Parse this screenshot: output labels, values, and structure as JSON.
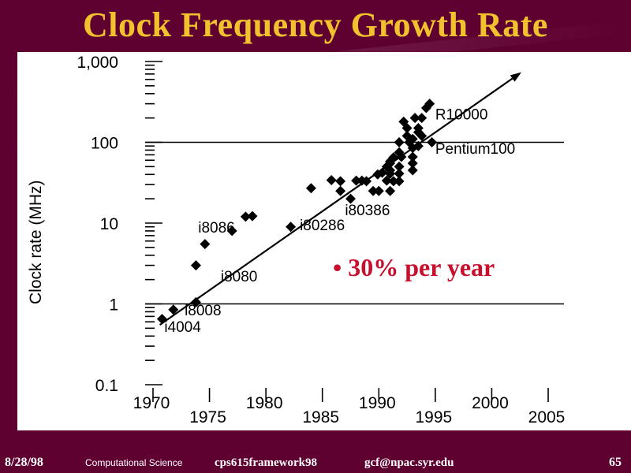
{
  "slide": {
    "title": "Clock Frequency Growth Rate",
    "bullet": "• 30% per year"
  },
  "footer": {
    "date": "8/28/98",
    "course": "Computational Science",
    "code": "cps615framework98",
    "email": "gcf@npac.syr.edu",
    "page": "65"
  },
  "colors": {
    "background": "#5e0030",
    "title": "#f2c12e",
    "bullet": "#c8102e"
  },
  "chart_data": {
    "type": "scatter",
    "ylabel": "Clock rate (MHz)",
    "yscale": "log",
    "ylim": [
      0.1,
      1000
    ],
    "xlim": [
      1970,
      2005
    ],
    "y_ticks": [
      {
        "value": 0.1,
        "label": "0.1"
      },
      {
        "value": 1,
        "label": "1"
      },
      {
        "value": 10,
        "label": "10"
      },
      {
        "value": 100,
        "label": "100"
      },
      {
        "value": 1000,
        "label": "1,000"
      }
    ],
    "x_ticks": [
      {
        "value": 1970,
        "label": "1970",
        "row": "upper"
      },
      {
        "value": 1975,
        "label": "1975",
        "row": "lower"
      },
      {
        "value": 1980,
        "label": "1980",
        "row": "upper"
      },
      {
        "value": 1985,
        "label": "1985",
        "row": "lower"
      },
      {
        "value": 1990,
        "label": "1990",
        "row": "upper"
      },
      {
        "value": 1995,
        "label": "1995",
        "row": "lower"
      },
      {
        "value": 2000,
        "label": "2000",
        "row": "upper"
      },
      {
        "value": 2005,
        "label": "2005",
        "row": "lower"
      }
    ],
    "reference_lines_y": [
      1,
      100
    ],
    "trend_line": {
      "from": [
        1970.6,
        0.55
      ],
      "to": [
        2002.4,
        700
      ]
    },
    "points": [
      [
        1970.8,
        0.65
      ],
      [
        1971.8,
        0.85
      ],
      [
        1973.8,
        3.0
      ],
      [
        1973.8,
        1.05
      ],
      [
        1974.6,
        5.5
      ],
      [
        1977.0,
        8.0
      ],
      [
        1978.2,
        12.0
      ],
      [
        1978.8,
        12.2
      ],
      [
        1982.2,
        9.0
      ],
      [
        1984.0,
        27.0
      ],
      [
        1985.8,
        34.0
      ],
      [
        1986.6,
        33.0
      ],
      [
        1986.6,
        25.0
      ],
      [
        1987.5,
        20.0
      ],
      [
        1988.0,
        33.5
      ],
      [
        1988.5,
        33.5
      ],
      [
        1988.9,
        33.0
      ],
      [
        1989.5,
        25.0
      ],
      [
        1989.9,
        40.0
      ],
      [
        1990.0,
        25.0
      ],
      [
        1990.3,
        42.0
      ],
      [
        1990.7,
        50.0
      ],
      [
        1990.7,
        33.5
      ],
      [
        1991.0,
        55.0
      ],
      [
        1991.0,
        41.0
      ],
      [
        1991.0,
        25.0
      ],
      [
        1991.3,
        65.0
      ],
      [
        1991.3,
        33.0
      ],
      [
        1991.8,
        100.0
      ],
      [
        1991.8,
        75.0
      ],
      [
        1991.8,
        50.0
      ],
      [
        1991.8,
        41.0
      ],
      [
        1991.8,
        33.0
      ],
      [
        1992.0,
        66.0
      ],
      [
        1992.2,
        180.0
      ],
      [
        1992.5,
        150.0
      ],
      [
        1992.5,
        120.0
      ],
      [
        1992.7,
        100.0
      ],
      [
        1993.0,
        110.0
      ],
      [
        1993.0,
        85.0
      ],
      [
        1993.0,
        66.0
      ],
      [
        1993.0,
        55.0
      ],
      [
        1993.0,
        45.0
      ],
      [
        1993.2,
        200.0
      ],
      [
        1993.5,
        150.0
      ],
      [
        1993.5,
        133.0
      ],
      [
        1993.5,
        90.0
      ],
      [
        1993.8,
        200.0
      ],
      [
        1993.8,
        120.0
      ],
      [
        1994.2,
        266.0
      ],
      [
        1994.5,
        300.0
      ],
      [
        1994.7,
        100.0
      ],
      [
        1991.0,
        58.0
      ],
      [
        1991.0,
        45.0
      ]
    ],
    "annotations": [
      {
        "text": "i4004",
        "x": 1971.0,
        "y": 0.45
      },
      {
        "text": "i8008",
        "x": 1972.8,
        "y": 0.72
      },
      {
        "text": "i8080",
        "x": 1976.0,
        "y": 1.9
      },
      {
        "text": "i8086",
        "x": 1974.0,
        "y": 7.6
      },
      {
        "text": "i80286",
        "x": 1983.0,
        "y": 8.2
      },
      {
        "text": "i80386",
        "x": 1987.0,
        "y": 12.5
      },
      {
        "text": "Pentium100",
        "x": 1995.0,
        "y": 72.0
      },
      {
        "text": "R10000",
        "x": 1995.0,
        "y": 192.0
      }
    ]
  }
}
